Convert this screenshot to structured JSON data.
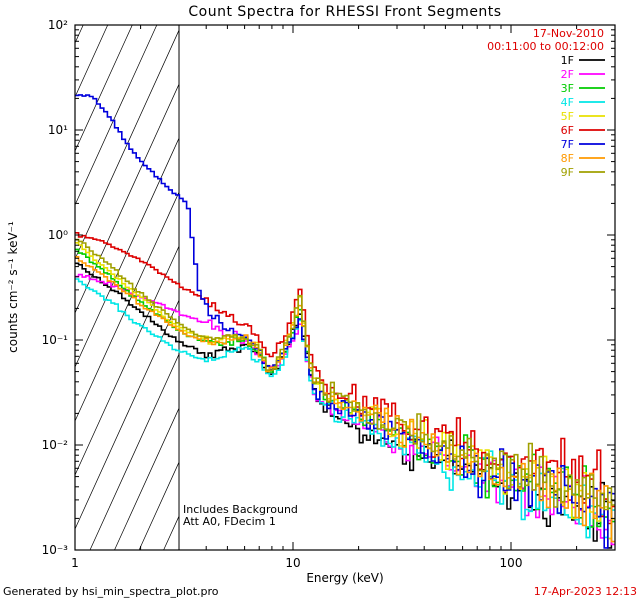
{
  "header": {
    "date": "17-Nov-2010",
    "time_range": "00:11:00 to 00:12:00",
    "color": "#dd0000"
  },
  "annotations": {
    "line1": "Includes Background",
    "line2": "Att A0, FDecim 1"
  },
  "footer": {
    "generated_by": "Generated by hsi_min_spectra_plot.pro",
    "timestamp": "17-Apr-2023 12:13",
    "timestamp_color": "#dd0000"
  },
  "chart_data": {
    "type": "line",
    "title": "Count Spectra for RHESSI Front Segments",
    "xlabel": "Energy (keV)",
    "ylabel": "counts cm⁻² s⁻¹ keV⁻¹",
    "x_scale": "log",
    "y_scale": "log",
    "x_range": [
      1,
      300
    ],
    "y_range": [
      0.001,
      100
    ],
    "grid": false,
    "legend_position": "top-right-inside",
    "x_ticks": [
      {
        "value": 1,
        "label": "1"
      },
      {
        "value": 10,
        "label": "10"
      },
      {
        "value": 100,
        "label": "100"
      }
    ],
    "y_ticks": [
      {
        "value": 100,
        "label": "10²"
      },
      {
        "value": 10,
        "label": "10¹"
      },
      {
        "value": 1,
        "label": "10⁰"
      },
      {
        "value": 0.1,
        "label": "10⁻¹"
      },
      {
        "value": 0.01,
        "label": "10⁻²"
      },
      {
        "value": 0.001,
        "label": "10⁻³"
      }
    ],
    "hatch_region": {
      "x_min": 1,
      "x_max": 3,
      "style": "diagonal-hatch"
    },
    "x_anchors": [
      1,
      1.2,
      1.5,
      1.8,
      2.2,
      2.6,
      3,
      3.3,
      3.7,
      4.2,
      5,
      6,
      7,
      7.8,
      8.5,
      9.3,
      10,
      10.8,
      11.5,
      12.5,
      14,
      17,
      20,
      25,
      30,
      40,
      50,
      70,
      100,
      150,
      200,
      300
    ],
    "series": [
      {
        "name": "1F",
        "color": "#000000",
        "values": [
          0.55,
          0.42,
          0.3,
          0.22,
          0.16,
          0.12,
          0.095,
          0.088,
          0.078,
          0.072,
          0.08,
          0.09,
          0.07,
          0.045,
          0.052,
          0.08,
          0.115,
          0.175,
          0.08,
          0.035,
          0.0225,
          0.018,
          0.015,
          0.012,
          0.0098,
          0.0075,
          0.0064,
          0.0049,
          0.0038,
          0.003,
          0.0025,
          0.0017
        ]
      },
      {
        "name": "2F",
        "color": "#ff00ff",
        "values": [
          0.42,
          0.38,
          0.33,
          0.28,
          0.24,
          0.205,
          0.18,
          0.168,
          0.155,
          0.14,
          0.115,
          0.1,
          0.072,
          0.05,
          0.056,
          0.078,
          0.1,
          0.145,
          0.07,
          0.03,
          0.0255,
          0.0204,
          0.017,
          0.0136,
          0.0111,
          0.0085,
          0.0072,
          0.0055,
          0.0043,
          0.0034,
          0.0028,
          0.0019
        ]
      },
      {
        "name": "3F",
        "color": "#00cc00",
        "values": [
          0.75,
          0.55,
          0.38,
          0.27,
          0.2,
          0.155,
          0.125,
          0.113,
          0.1,
          0.092,
          0.098,
          0.1,
          0.075,
          0.05,
          0.06,
          0.088,
          0.125,
          0.215,
          0.09,
          0.04,
          0.03,
          0.024,
          0.02,
          0.016,
          0.013,
          0.01,
          0.0085,
          0.0065,
          0.005,
          0.004,
          0.0033,
          0.0022
        ]
      },
      {
        "name": "4F",
        "color": "#00e6e6",
        "values": [
          0.38,
          0.3,
          0.22,
          0.16,
          0.12,
          0.095,
          0.078,
          0.072,
          0.067,
          0.064,
          0.074,
          0.084,
          0.065,
          0.042,
          0.05,
          0.074,
          0.105,
          0.165,
          0.073,
          0.031,
          0.024,
          0.0192,
          0.016,
          0.0128,
          0.0104,
          0.008,
          0.0068,
          0.0052,
          0.004,
          0.0032,
          0.0026,
          0.0018
        ]
      },
      {
        "name": "5F",
        "color": "#e8e000",
        "values": [
          0.88,
          0.62,
          0.42,
          0.3,
          0.22,
          0.165,
          0.132,
          0.12,
          0.108,
          0.1,
          0.106,
          0.108,
          0.08,
          0.054,
          0.064,
          0.096,
          0.145,
          0.275,
          0.1,
          0.044,
          0.0345,
          0.0276,
          0.023,
          0.0184,
          0.015,
          0.0115,
          0.0098,
          0.0075,
          0.0058,
          0.0046,
          0.0038,
          0.0025
        ]
      },
      {
        "name": "6F",
        "color": "#dd0000",
        "values": [
          1.05,
          0.92,
          0.78,
          0.64,
          0.51,
          0.41,
          0.335,
          0.3,
          0.26,
          0.22,
          0.17,
          0.14,
          0.1,
          0.068,
          0.084,
          0.125,
          0.19,
          0.31,
          0.12,
          0.05,
          0.039,
          0.0312,
          0.026,
          0.0208,
          0.0169,
          0.013,
          0.011,
          0.0085,
          0.0065,
          0.0052,
          0.0043,
          0.0029
        ]
      },
      {
        "name": "7F",
        "color": "#0000dd",
        "values": [
          22,
          21,
          12,
          6.5,
          4.2,
          3.0,
          2.3,
          1.9,
          0.3,
          0.17,
          0.13,
          0.11,
          0.08,
          0.05,
          0.06,
          0.085,
          0.11,
          0.16,
          0.078,
          0.034,
          0.0285,
          0.0228,
          0.019,
          0.0152,
          0.0124,
          0.0095,
          0.0081,
          0.0062,
          0.0048,
          0.0038,
          0.0031,
          0.0021
        ]
      },
      {
        "name": "8F",
        "color": "#ff9900",
        "values": [
          0.62,
          0.48,
          0.35,
          0.26,
          0.19,
          0.15,
          0.121,
          0.11,
          0.099,
          0.092,
          0.098,
          0.104,
          0.078,
          0.05,
          0.06,
          0.09,
          0.135,
          0.235,
          0.092,
          0.041,
          0.0315,
          0.0252,
          0.021,
          0.0168,
          0.0137,
          0.0105,
          0.0089,
          0.0068,
          0.0053,
          0.0042,
          0.0035,
          0.0023
        ]
      },
      {
        "name": "9F",
        "color": "#a0a000",
        "values": [
          0.95,
          0.7,
          0.48,
          0.33,
          0.24,
          0.18,
          0.142,
          0.125,
          0.11,
          0.102,
          0.104,
          0.105,
          0.079,
          0.052,
          0.062,
          0.092,
          0.14,
          0.25,
          0.095,
          0.042,
          0.033,
          0.0264,
          0.022,
          0.0176,
          0.0143,
          0.011,
          0.0094,
          0.0072,
          0.0055,
          0.0044,
          0.0036,
          0.0024
        ]
      }
    ],
    "noise": {
      "start_x": 12,
      "sigma_start": 0.05,
      "sigma_end": 0.26,
      "mid_above_x": 4,
      "sigma_mid": 0.03,
      "sigma_low": 0.012
    }
  }
}
